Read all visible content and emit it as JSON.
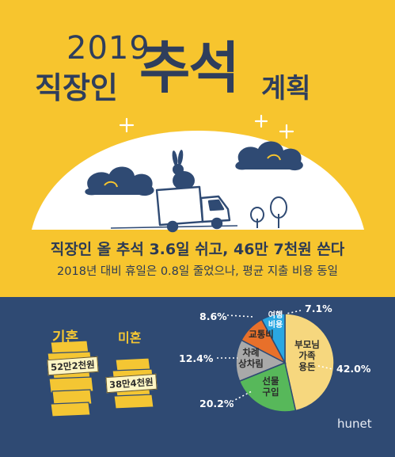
{
  "title": {
    "year": "2019",
    "left": "직장인",
    "big": "추석",
    "right": "계획"
  },
  "headline": "직장인 올 추석 3.6일 쉬고, 46만 7천원 쓴다",
  "subheadline": "2018년 대비 휴일은 0.8일 줄었으나, 평균 지출 비용 동일",
  "spending": {
    "married_label": "기혼",
    "married_amount": "52만2천원",
    "single_label": "미혼",
    "single_amount": "38만4천원"
  },
  "chart_data": {
    "type": "pie",
    "title": "",
    "slices": [
      {
        "label": "부모님 가족 용돈",
        "label_lines": [
          "부모님",
          "가족",
          "용돈"
        ],
        "value": 42.0,
        "value_label": "42.0%",
        "color": "#f6d77e"
      },
      {
        "label": "선물 구입",
        "label_lines": [
          "선물",
          "구입"
        ],
        "value": 20.2,
        "value_label": "20.2%",
        "color": "#57b85a"
      },
      {
        "label": "차례 상차림",
        "label_lines": [
          "차례",
          "상차림"
        ],
        "value": 12.4,
        "value_label": "12.4%",
        "color": "#a9a9a9"
      },
      {
        "label": "교통비",
        "label_lines": [
          "교통비"
        ],
        "value": 8.6,
        "value_label": "8.6%",
        "color": "#e8702a"
      },
      {
        "label": "여행 비용",
        "label_lines": [
          "여행",
          "비용"
        ],
        "value": 7.1,
        "value_label": "7.1%",
        "color": "#2aa7e2"
      }
    ]
  },
  "brand": "hunet",
  "colors": {
    "background": "#f7c52e",
    "panel": "#2f4a73",
    "navy": "#2f3e5c",
    "accent": "#f4c633"
  },
  "icons": [
    "rabbit-icon",
    "truck-icon",
    "cloud-icon",
    "star-icon",
    "tree-icon",
    "coin-stack-icon"
  ]
}
